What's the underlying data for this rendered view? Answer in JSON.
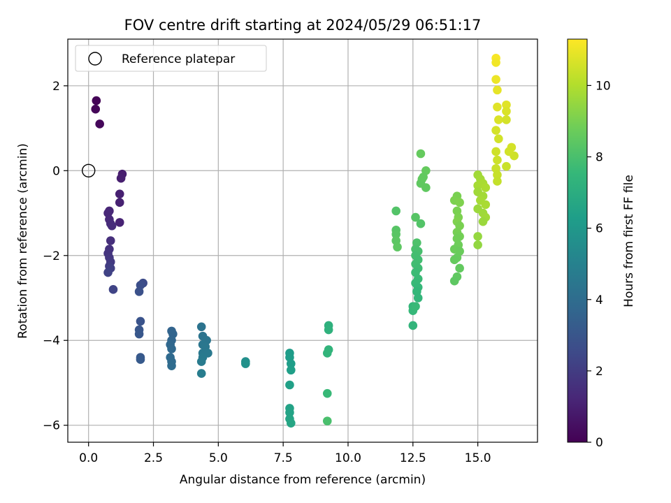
{
  "chart_data": {
    "type": "scatter",
    "title": "FOV centre drift starting at 2024/05/29 06:51:17",
    "xlabel": "Angular distance from reference (arcmin)",
    "ylabel": "Rotation from reference (arcmin)",
    "xlim": [
      -0.8,
      17.3
    ],
    "ylim": [
      -6.4,
      3.1
    ],
    "xticks": [
      0.0,
      2.5,
      5.0,
      7.5,
      10.0,
      12.5,
      15.0
    ],
    "xtick_labels": [
      "0.0",
      "2.5",
      "5.0",
      "7.5",
      "10.0",
      "12.5",
      "15.0"
    ],
    "yticks": [
      -6,
      -4,
      -2,
      0,
      2
    ],
    "ytick_labels": [
      "−6",
      "−4",
      "−2",
      "0",
      "2"
    ],
    "grid": true,
    "legend": {
      "position": "upper-left",
      "entries": [
        {
          "label": "Reference platepar",
          "marker": "open-circle"
        }
      ]
    },
    "reference_point": {
      "x": 0.0,
      "y": 0.0
    },
    "colorbar": {
      "label": "Hours from first FF file",
      "range": [
        0,
        11.3
      ],
      "ticks": [
        0,
        2,
        4,
        6,
        8,
        10
      ],
      "tick_labels": [
        "0",
        "2",
        "4",
        "6",
        "8",
        "10"
      ],
      "colormap": "viridis",
      "stops": [
        "#440154",
        "#482878",
        "#3e4a89",
        "#31688e",
        "#26828e",
        "#1f9e89",
        "#35b779",
        "#6dcd59",
        "#b4de2c",
        "#fde725"
      ]
    },
    "points": [
      {
        "x": 0.3,
        "y": 1.65,
        "t": 0.1
      },
      {
        "x": 0.27,
        "y": 1.45,
        "t": 0.15
      },
      {
        "x": 0.43,
        "y": 1.1,
        "t": 0.2
      },
      {
        "x": 1.3,
        "y": -0.08,
        "t": 0.9
      },
      {
        "x": 1.25,
        "y": -0.18,
        "t": 0.95
      },
      {
        "x": 1.2,
        "y": -0.55,
        "t": 1.0
      },
      {
        "x": 1.2,
        "y": -0.75,
        "t": 1.05
      },
      {
        "x": 1.2,
        "y": -1.22,
        "t": 1.1
      },
      {
        "x": 0.8,
        "y": -0.95,
        "t": 1.2
      },
      {
        "x": 0.75,
        "y": -1.0,
        "t": 1.25
      },
      {
        "x": 0.8,
        "y": -1.15,
        "t": 1.3
      },
      {
        "x": 0.85,
        "y": -1.25,
        "t": 1.35
      },
      {
        "x": 0.9,
        "y": -1.3,
        "t": 1.4
      },
      {
        "x": 0.85,
        "y": -1.65,
        "t": 1.5
      },
      {
        "x": 0.8,
        "y": -1.85,
        "t": 1.6
      },
      {
        "x": 0.75,
        "y": -1.95,
        "t": 1.7
      },
      {
        "x": 0.8,
        "y": -2.05,
        "t": 1.8
      },
      {
        "x": 0.85,
        "y": -2.15,
        "t": 1.9
      },
      {
        "x": 0.8,
        "y": -2.25,
        "t": 2.0
      },
      {
        "x": 0.85,
        "y": -2.3,
        "t": 2.1
      },
      {
        "x": 0.75,
        "y": -2.4,
        "t": 2.2
      },
      {
        "x": 0.95,
        "y": -2.8,
        "t": 2.3
      },
      {
        "x": 2.1,
        "y": -2.65,
        "t": 2.6
      },
      {
        "x": 2.0,
        "y": -2.7,
        "t": 2.7
      },
      {
        "x": 1.95,
        "y": -2.85,
        "t": 2.8
      },
      {
        "x": 2.0,
        "y": -3.55,
        "t": 2.9
      },
      {
        "x": 1.95,
        "y": -3.75,
        "t": 3.0
      },
      {
        "x": 1.95,
        "y": -3.85,
        "t": 3.05
      },
      {
        "x": 2.0,
        "y": -4.4,
        "t": 3.1
      },
      {
        "x": 2.0,
        "y": -4.45,
        "t": 3.2
      },
      {
        "x": 3.2,
        "y": -3.78,
        "t": 3.6
      },
      {
        "x": 3.25,
        "y": -3.85,
        "t": 3.65
      },
      {
        "x": 3.2,
        "y": -4.0,
        "t": 3.7
      },
      {
        "x": 3.15,
        "y": -4.1,
        "t": 3.75
      },
      {
        "x": 3.2,
        "y": -4.2,
        "t": 3.8
      },
      {
        "x": 3.15,
        "y": -4.4,
        "t": 3.85
      },
      {
        "x": 3.2,
        "y": -4.5,
        "t": 3.9
      },
      {
        "x": 3.2,
        "y": -4.6,
        "t": 3.95
      },
      {
        "x": 4.35,
        "y": -3.68,
        "t": 4.3
      },
      {
        "x": 4.4,
        "y": -3.9,
        "t": 4.35
      },
      {
        "x": 4.55,
        "y": -4.0,
        "t": 4.4
      },
      {
        "x": 4.4,
        "y": -4.1,
        "t": 4.45
      },
      {
        "x": 4.5,
        "y": -4.15,
        "t": 4.5
      },
      {
        "x": 4.4,
        "y": -4.3,
        "t": 4.55
      },
      {
        "x": 4.6,
        "y": -4.3,
        "t": 4.6
      },
      {
        "x": 4.4,
        "y": -4.4,
        "t": 4.65
      },
      {
        "x": 4.35,
        "y": -4.5,
        "t": 4.7
      },
      {
        "x": 4.35,
        "y": -4.78,
        "t": 4.8
      },
      {
        "x": 6.05,
        "y": -4.5,
        "t": 5.6
      },
      {
        "x": 6.05,
        "y": -4.55,
        "t": 5.7
      },
      {
        "x": 7.75,
        "y": -4.3,
        "t": 6.2
      },
      {
        "x": 7.75,
        "y": -4.4,
        "t": 6.25
      },
      {
        "x": 7.8,
        "y": -4.55,
        "t": 6.3
      },
      {
        "x": 7.8,
        "y": -4.7,
        "t": 6.35
      },
      {
        "x": 7.75,
        "y": -5.05,
        "t": 6.4
      },
      {
        "x": 7.75,
        "y": -5.6,
        "t": 6.5
      },
      {
        "x": 7.75,
        "y": -5.7,
        "t": 6.55
      },
      {
        "x": 7.75,
        "y": -5.85,
        "t": 6.6
      },
      {
        "x": 7.8,
        "y": -5.95,
        "t": 6.65
      },
      {
        "x": 9.25,
        "y": -3.65,
        "t": 7.2
      },
      {
        "x": 9.25,
        "y": -3.75,
        "t": 7.25
      },
      {
        "x": 9.25,
        "y": -4.22,
        "t": 7.35
      },
      {
        "x": 9.2,
        "y": -4.3,
        "t": 7.4
      },
      {
        "x": 9.2,
        "y": -5.25,
        "t": 7.6
      },
      {
        "x": 9.2,
        "y": -5.9,
        "t": 8.0
      },
      {
        "x": 11.85,
        "y": -0.95,
        "t": 8.2
      },
      {
        "x": 11.85,
        "y": -1.4,
        "t": 8.3
      },
      {
        "x": 11.85,
        "y": -1.5,
        "t": 8.35
      },
      {
        "x": 11.85,
        "y": -1.65,
        "t": 8.4
      },
      {
        "x": 11.9,
        "y": -1.8,
        "t": 8.45
      },
      {
        "x": 12.5,
        "y": -3.2,
        "t": 7.5
      },
      {
        "x": 12.5,
        "y": -3.3,
        "t": 7.55
      },
      {
        "x": 12.6,
        "y": -3.2,
        "t": 7.6
      },
      {
        "x": 12.5,
        "y": -3.65,
        "t": 7.4
      },
      {
        "x": 12.8,
        "y": 0.4,
        "t": 8.6
      },
      {
        "x": 12.85,
        "y": -0.2,
        "t": 8.55
      },
      {
        "x": 12.8,
        "y": -0.3,
        "t": 8.5
      },
      {
        "x": 13.0,
        "y": 0.0,
        "t": 8.6
      },
      {
        "x": 12.9,
        "y": -0.15,
        "t": 8.55
      },
      {
        "x": 13.0,
        "y": -0.4,
        "t": 8.5
      },
      {
        "x": 12.6,
        "y": -1.1,
        "t": 8.3
      },
      {
        "x": 12.8,
        "y": -1.25,
        "t": 8.2
      },
      {
        "x": 12.65,
        "y": -1.7,
        "t": 8.1
      },
      {
        "x": 12.6,
        "y": -1.85,
        "t": 8.0
      },
      {
        "x": 12.7,
        "y": -1.9,
        "t": 7.95
      },
      {
        "x": 12.6,
        "y": -2.0,
        "t": 7.9
      },
      {
        "x": 12.7,
        "y": -2.1,
        "t": 7.85
      },
      {
        "x": 12.6,
        "y": -2.2,
        "t": 7.8
      },
      {
        "x": 12.7,
        "y": -2.3,
        "t": 7.75
      },
      {
        "x": 12.6,
        "y": -2.4,
        "t": 7.7
      },
      {
        "x": 12.7,
        "y": -2.55,
        "t": 7.65
      },
      {
        "x": 12.6,
        "y": -2.65,
        "t": 7.6
      },
      {
        "x": 12.7,
        "y": -2.75,
        "t": 7.55
      },
      {
        "x": 12.65,
        "y": -2.85,
        "t": 7.5
      },
      {
        "x": 12.7,
        "y": -3.0,
        "t": 7.45
      },
      {
        "x": 14.2,
        "y": -0.6,
        "t": 9.0
      },
      {
        "x": 14.1,
        "y": -0.7,
        "t": 9.05
      },
      {
        "x": 14.3,
        "y": -0.75,
        "t": 9.1
      },
      {
        "x": 14.2,
        "y": -0.95,
        "t": 9.0
      },
      {
        "x": 14.25,
        "y": -1.1,
        "t": 9.05
      },
      {
        "x": 14.2,
        "y": -1.2,
        "t": 9.1
      },
      {
        "x": 14.3,
        "y": -1.3,
        "t": 9.0
      },
      {
        "x": 14.2,
        "y": -1.45,
        "t": 8.95
      },
      {
        "x": 14.3,
        "y": -1.55,
        "t": 8.9
      },
      {
        "x": 14.2,
        "y": -1.6,
        "t": 8.85
      },
      {
        "x": 14.25,
        "y": -1.75,
        "t": 8.8
      },
      {
        "x": 14.1,
        "y": -1.85,
        "t": 8.75
      },
      {
        "x": 14.3,
        "y": -1.9,
        "t": 8.7
      },
      {
        "x": 14.2,
        "y": -2.05,
        "t": 8.65
      },
      {
        "x": 14.1,
        "y": -2.1,
        "t": 8.6
      },
      {
        "x": 14.3,
        "y": -2.3,
        "t": 8.55
      },
      {
        "x": 14.2,
        "y": -2.5,
        "t": 8.5
      },
      {
        "x": 14.1,
        "y": -2.6,
        "t": 8.45
      },
      {
        "x": 15.0,
        "y": -0.1,
        "t": 9.7
      },
      {
        "x": 15.1,
        "y": -0.2,
        "t": 9.75
      },
      {
        "x": 15.0,
        "y": -0.35,
        "t": 9.8
      },
      {
        "x": 15.2,
        "y": -0.3,
        "t": 9.85
      },
      {
        "x": 15.3,
        "y": -0.4,
        "t": 9.9
      },
      {
        "x": 15.0,
        "y": -0.5,
        "t": 9.7
      },
      {
        "x": 15.2,
        "y": -0.6,
        "t": 9.75
      },
      {
        "x": 15.1,
        "y": -0.7,
        "t": 9.8
      },
      {
        "x": 15.3,
        "y": -0.8,
        "t": 9.85
      },
      {
        "x": 15.0,
        "y": -0.9,
        "t": 9.6
      },
      {
        "x": 15.2,
        "y": -1.0,
        "t": 9.65
      },
      {
        "x": 15.3,
        "y": -1.1,
        "t": 9.7
      },
      {
        "x": 15.2,
        "y": -1.2,
        "t": 9.6
      },
      {
        "x": 15.0,
        "y": -1.55,
        "t": 9.5
      },
      {
        "x": 15.0,
        "y": -1.75,
        "t": 9.45
      },
      {
        "x": 15.7,
        "y": 2.65,
        "t": 11.2
      },
      {
        "x": 15.7,
        "y": 2.55,
        "t": 11.1
      },
      {
        "x": 15.7,
        "y": 2.15,
        "t": 11.0
      },
      {
        "x": 15.75,
        "y": 1.9,
        "t": 10.9
      },
      {
        "x": 15.75,
        "y": 1.5,
        "t": 10.8
      },
      {
        "x": 15.8,
        "y": 1.2,
        "t": 10.7
      },
      {
        "x": 15.7,
        "y": 0.95,
        "t": 10.6
      },
      {
        "x": 15.8,
        "y": 0.75,
        "t": 10.55
      },
      {
        "x": 15.7,
        "y": 0.45,
        "t": 10.5
      },
      {
        "x": 15.75,
        "y": 0.25,
        "t": 10.45
      },
      {
        "x": 15.7,
        "y": 0.05,
        "t": 10.4
      },
      {
        "x": 15.75,
        "y": -0.1,
        "t": 10.35
      },
      {
        "x": 15.75,
        "y": -0.25,
        "t": 10.3
      },
      {
        "x": 16.1,
        "y": 1.55,
        "t": 10.8
      },
      {
        "x": 16.1,
        "y": 1.4,
        "t": 10.7
      },
      {
        "x": 16.1,
        "y": 1.2,
        "t": 10.6
      },
      {
        "x": 16.3,
        "y": 0.55,
        "t": 10.6
      },
      {
        "x": 16.4,
        "y": 0.35,
        "t": 10.5
      },
      {
        "x": 16.2,
        "y": 0.45,
        "t": 10.55
      },
      {
        "x": 16.1,
        "y": 0.1,
        "t": 10.4
      }
    ]
  }
}
